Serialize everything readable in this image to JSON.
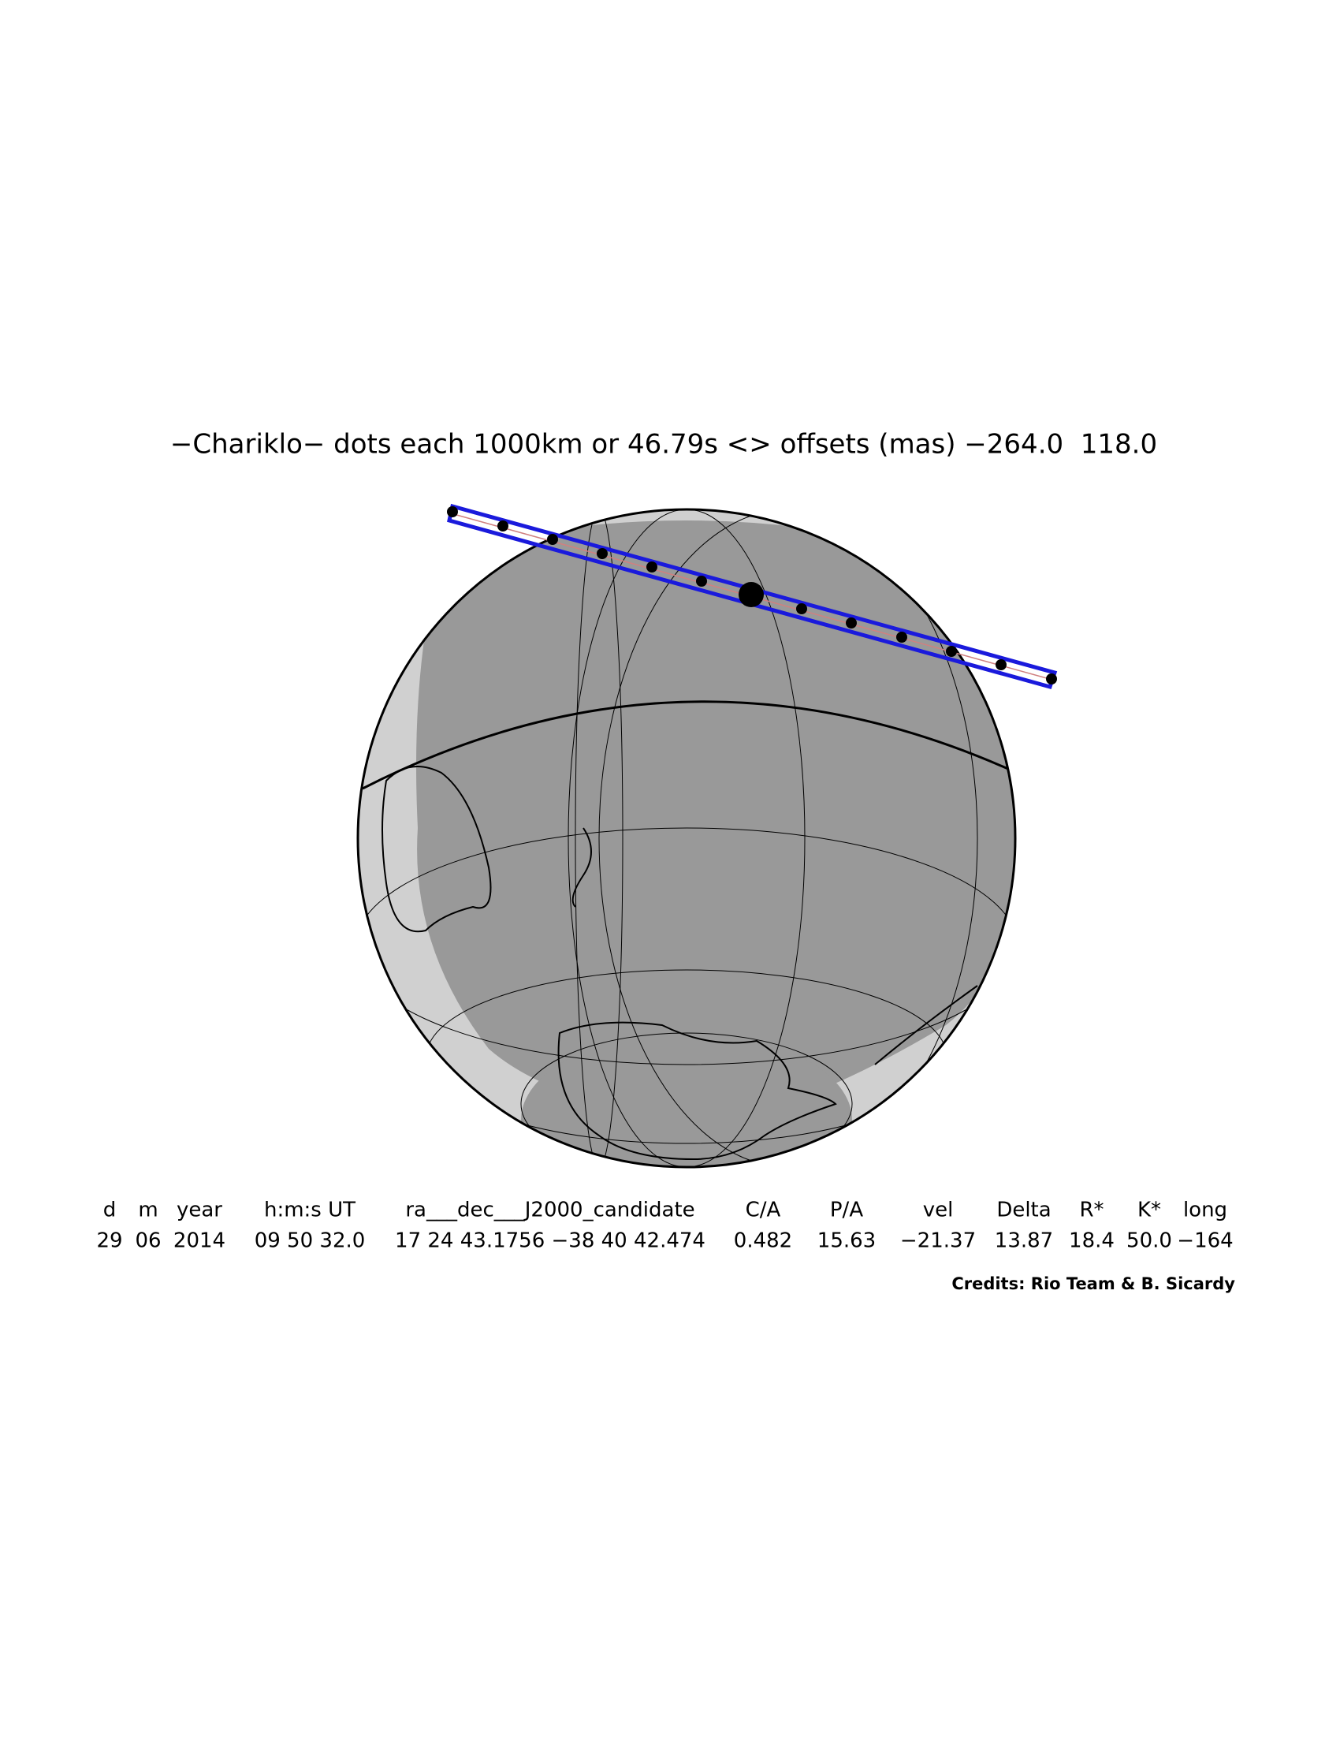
{
  "title": "−Chariklo− dots each 1000km or 46.79s <> offsets (mas) −264.0  118.0",
  "table": {
    "columns": [
      {
        "header": "d",
        "value": "29"
      },
      {
        "header": "m",
        "value": "06"
      },
      {
        "header": "year",
        "value": "2014"
      },
      {
        "header": "h:m:s UT",
        "value": "09 50 32.0"
      },
      {
        "header": "ra___dec___J2000_candidate",
        "value": "17 24 43.1756 −38 40 42.474"
      },
      {
        "header": "C/A",
        "value": "0.482"
      },
      {
        "header": "P/A",
        "value": "15.63"
      },
      {
        "header": "vel",
        "value": "−21.37"
      },
      {
        "header": "Delta",
        "value": "13.87"
      },
      {
        "header": "R*",
        "value": "18.4"
      },
      {
        "header": "K*",
        "value": "50.0"
      },
      {
        "header": "long",
        "value": "−164"
      }
    ]
  },
  "credits": "Credits: Rio Team & B. Sicardy"
}
